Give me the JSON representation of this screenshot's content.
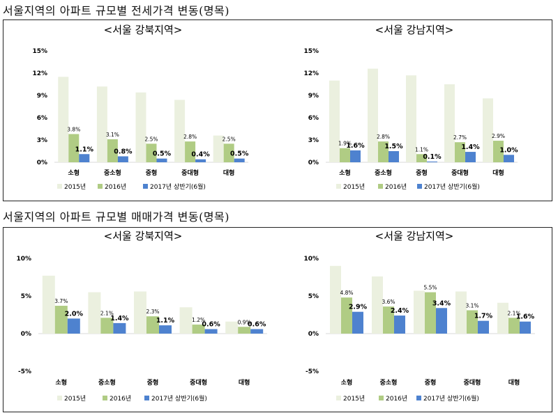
{
  "sections": [
    {
      "title": "서울지역의 아파트 규모별 전세가격 변동(명목)"
    },
    {
      "title": "서울지역의 아파트 규모별 매매가격 변동(명목)"
    }
  ],
  "legend": {
    "labels": [
      "2015년",
      "2016년",
      "2017년 상반기(6월)"
    ],
    "colors": [
      "#ebf0df",
      "#b0cc84",
      "#4e82cf"
    ]
  },
  "chart_data": [
    {
      "type": "bar",
      "title": "<서울 강북지역>",
      "categories": [
        "소형",
        "중소형",
        "중형",
        "중대형",
        "대형"
      ],
      "ylim": [
        0,
        15
      ],
      "yticks": [
        0,
        3,
        6,
        9,
        12,
        15
      ],
      "ytick_labels": [
        "0%",
        "3%",
        "6%",
        "9%",
        "12%",
        "15%"
      ],
      "series": [
        {
          "name": "2015년",
          "values": [
            11.5,
            10.2,
            9.4,
            8.4,
            3.6
          ],
          "labels": [
            "",
            "",
            "",
            "",
            ""
          ]
        },
        {
          "name": "2016년",
          "values": [
            3.8,
            3.1,
            2.5,
            2.8,
            2.5
          ],
          "labels": [
            "3.8%",
            "3.1%",
            "2.5%",
            "2.8%",
            "2.5%"
          ]
        },
        {
          "name": "2017년 상반기(6월)",
          "values": [
            1.1,
            0.8,
            0.5,
            0.4,
            0.5
          ],
          "labels": [
            "1.1%",
            "0.8%",
            "0.5%",
            "0.4%",
            "0.5%"
          ]
        }
      ],
      "legend": "bottom",
      "grid": false
    },
    {
      "type": "bar",
      "title": "<서울 강남지역>",
      "categories": [
        "소형",
        "중소형",
        "중형",
        "중대형",
        "대형"
      ],
      "ylim": [
        0,
        15
      ],
      "yticks": [
        0,
        3,
        6,
        9,
        12,
        15
      ],
      "ytick_labels": [
        "0%",
        "3%",
        "6%",
        "9%",
        "12%",
        "15%"
      ],
      "series": [
        {
          "name": "2015년",
          "values": [
            11.0,
            12.6,
            11.7,
            10.5,
            8.6
          ],
          "labels": [
            "",
            "",
            "",
            "",
            ""
          ]
        },
        {
          "name": "2016년",
          "values": [
            1.9,
            2.8,
            1.1,
            2.7,
            2.9
          ],
          "labels": [
            "1.9%",
            "2.8%",
            "1.1%",
            "2.7%",
            "2.9%"
          ]
        },
        {
          "name": "2017년 상반기(6월)",
          "values": [
            1.6,
            1.5,
            0.1,
            1.4,
            1.0
          ],
          "labels": [
            "1.6%",
            "1.5%",
            "0.1%",
            "1.4%",
            "1.0%"
          ]
        }
      ],
      "legend": "bottom",
      "grid": false
    },
    {
      "type": "bar",
      "title": "<서울 강북지역>",
      "categories": [
        "소형",
        "중소형",
        "중형",
        "중대형",
        "대형"
      ],
      "ylim": [
        -5,
        10
      ],
      "yticks": [
        -5,
        0,
        5,
        10
      ],
      "ytick_labels": [
        "-5%",
        "0%",
        "5%",
        "10%"
      ],
      "series": [
        {
          "name": "2015년",
          "values": [
            7.7,
            5.5,
            5.6,
            3.5,
            1.6
          ],
          "labels": [
            "",
            "",
            "",
            "",
            ""
          ]
        },
        {
          "name": "2016년",
          "values": [
            3.7,
            2.1,
            2.3,
            1.2,
            0.9
          ],
          "labels": [
            "3.7%",
            "2.1%",
            "2.3%",
            "1.2%",
            "0.9%"
          ]
        },
        {
          "name": "2017년 상반기(6월)",
          "values": [
            2.0,
            1.4,
            1.1,
            0.6,
            0.6
          ],
          "labels": [
            "2.0%",
            "1.4%",
            "1.1%",
            "0.6%",
            "0.6%"
          ]
        }
      ],
      "legend": "bottom",
      "grid": false
    },
    {
      "type": "bar",
      "title": "<서울 강남지역>",
      "categories": [
        "소형",
        "중소형",
        "중형",
        "중대형",
        "대형"
      ],
      "ylim": [
        -5,
        10
      ],
      "yticks": [
        -5,
        0,
        5,
        10
      ],
      "ytick_labels": [
        "-5%",
        "0%",
        "5%",
        "10%"
      ],
      "series": [
        {
          "name": "2015년",
          "values": [
            9.0,
            7.6,
            5.7,
            5.6,
            4.1
          ],
          "labels": [
            "",
            "",
            "",
            "",
            ""
          ]
        },
        {
          "name": "2016년",
          "values": [
            4.8,
            3.6,
            5.5,
            3.1,
            2.1
          ],
          "labels": [
            "4.8%",
            "3.6%",
            "5.5%",
            "3.1%",
            "2.1%"
          ]
        },
        {
          "name": "2017년 상반기(6월)",
          "values": [
            2.9,
            2.4,
            3.4,
            1.7,
            1.6
          ],
          "labels": [
            "2.9%",
            "2.4%",
            "3.4%",
            "1.7%",
            "1.6%"
          ]
        }
      ],
      "legend": "bottom",
      "grid": false
    }
  ]
}
